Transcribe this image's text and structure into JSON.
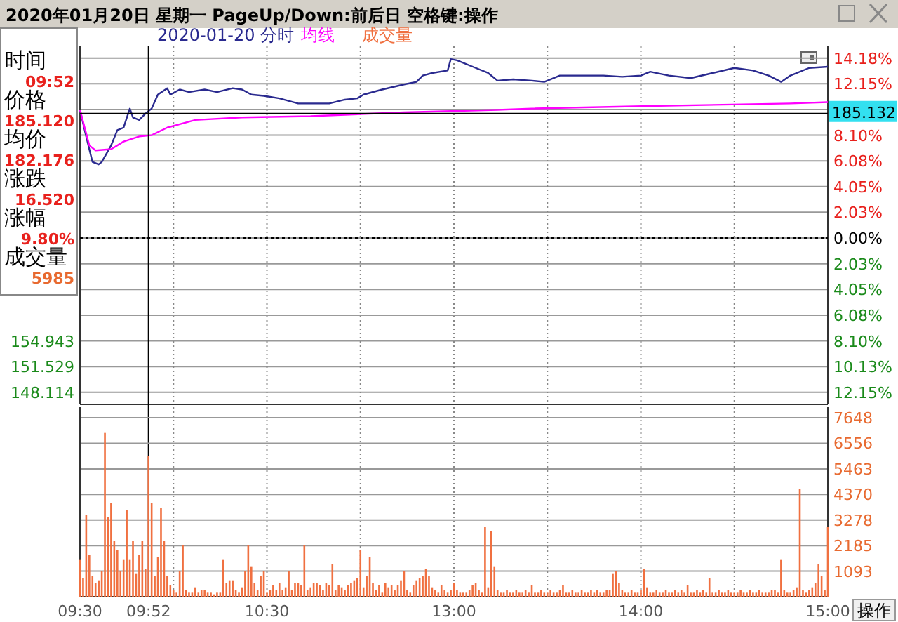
{
  "chart_data": [
    {
      "type": "line",
      "title": "2020年01月20日 星期一 PageUp/Down:前后日 空格键:操作",
      "ylim": [
        -13.1,
        15.1
      ],
      "y2lim": [
        146.51,
        194.06
      ],
      "tick_labels": "y",
      "grid": true,
      "legend": "top",
      "categories": [
        "09:30",
        null,
        null,
        null,
        null,
        null,
        null,
        null,
        null,
        null,
        null,
        null,
        null,
        null,
        null,
        null,
        null,
        null,
        null,
        null,
        null,
        null,
        "09:52",
        null,
        null,
        null,
        null,
        null,
        null,
        null,
        null,
        null,
        null,
        null,
        null,
        null,
        null,
        null,
        null,
        null,
        null,
        null,
        null,
        null,
        null,
        null,
        null,
        null,
        null,
        null,
        null,
        null,
        null,
        null,
        null,
        null,
        null,
        null,
        null,
        null,
        "10:30",
        null,
        null,
        null,
        null,
        null,
        null,
        null,
        null,
        null,
        null,
        null,
        null,
        null,
        null,
        null,
        null,
        null,
        null,
        null,
        null,
        null,
        null,
        null,
        null,
        null,
        null,
        null,
        null,
        null,
        null,
        null,
        null,
        null,
        null,
        null,
        null,
        null,
        null,
        null,
        null,
        null,
        null,
        null,
        null,
        null,
        null,
        null,
        null,
        null,
        null,
        null,
        null,
        null,
        null,
        null,
        null,
        null,
        null,
        null,
        "13:00",
        null,
        null,
        null,
        null,
        null,
        null,
        null,
        null,
        null,
        null,
        null,
        null,
        null,
        null,
        null,
        null,
        null,
        null,
        null,
        null,
        null,
        null,
        null,
        null,
        null,
        null,
        null,
        null,
        null,
        null,
        null,
        null,
        null,
        null,
        null,
        null,
        null,
        null,
        null,
        null,
        null,
        null,
        null,
        null,
        null,
        null,
        null,
        null,
        null,
        null,
        null,
        null,
        null,
        null,
        null,
        null,
        null,
        null,
        null,
        "14:00",
        null,
        null,
        null,
        null,
        null,
        null,
        null,
        null,
        null,
        null,
        null,
        null,
        null,
        null,
        null,
        null,
        null,
        null,
        null,
        null,
        null,
        null,
        null,
        null,
        null,
        null,
        null,
        null,
        null,
        null,
        null,
        null,
        null,
        null,
        null,
        null,
        null,
        null,
        null,
        null,
        null,
        null,
        null,
        null,
        null,
        null,
        null,
        null,
        null,
        null,
        null,
        null,
        null,
        null,
        null,
        null,
        null,
        null,
        null,
        "15:00"
      ],
      "yticks": [
        {
          "value": 14.18,
          "label": "14.18%"
        },
        {
          "value": 12.15,
          "label": "12.15%"
        },
        {
          "value": 10.13,
          "label": null
        },
        {
          "value": 8.1,
          "label": "8.10%"
        },
        {
          "value": 6.08,
          "label": "6.08%"
        },
        {
          "value": 4.05,
          "label": "4.05%"
        },
        {
          "value": 2.03,
          "label": "2.03%"
        },
        {
          "value": 0,
          "label": "0.00%"
        },
        {
          "value": -2.03,
          "label": "2.03%"
        },
        {
          "value": -4.05,
          "label": "4.05%"
        },
        {
          "value": -6.08,
          "label": "6.08%"
        },
        {
          "value": -8.1,
          "label": "8.10%"
        },
        {
          "value": -10.13,
          "label": "10.13%"
        },
        {
          "value": -12.15,
          "label": "12.15%"
        }
      ],
      "y2ticks": [
        154.943,
        151.529,
        148.114
      ],
      "ref_lines": [
        {
          "axis": "x",
          "value": "09:52"
        },
        {
          "axis": "y",
          "value": 0,
          "line_style": "dotted"
        },
        {
          "axis": "y2",
          "value": 185.132,
          "label": "185.132"
        }
      ],
      "annotations": [
        "时间",
        "09:52",
        "价格",
        "185.120",
        "均价",
        "182.176",
        "涨跌",
        "16.520",
        "涨幅",
        "9.80%",
        "成交量",
        "5985"
      ],
      "series": [
        {
          "name": "2020-01-20 分时",
          "color": "#2a2a8f",
          "values": [
            10.1,
            null,
            8.0,
            null,
            6.0,
            null,
            5.8,
            6.0,
            null,
            null,
            7.3,
            null,
            8.5,
            null,
            8.7,
            null,
            10.2,
            9.5,
            null,
            9.3,
            null,
            9.8,
            null,
            10.2,
            null,
            11.3,
            null,
            null,
            11.8,
            11.3,
            null,
            null,
            11.7,
            null,
            null,
            11.5,
            null,
            null,
            null,
            null,
            11.7,
            null,
            null,
            null,
            11.5,
            null,
            null,
            null,
            null,
            11.8,
            null,
            null,
            11.7,
            null,
            null,
            11.3,
            null,
            null,
            null,
            11.2,
            null,
            null,
            null,
            null,
            11.0,
            null,
            null,
            null,
            null,
            null,
            10.6,
            null,
            null,
            null,
            null,
            null,
            10.6,
            null,
            null,
            null,
            10.6,
            null,
            null,
            null,
            null,
            10.9,
            null,
            null,
            null,
            11.0,
            null,
            11.3,
            null,
            null,
            null,
            null,
            null,
            11.7,
            null,
            null,
            null,
            null,
            null,
            null,
            12.1,
            null,
            null,
            null,
            12.3,
            null,
            12.8,
            null,
            null,
            13.0,
            null,
            null,
            null,
            null,
            13.2,
            14.1,
            null,
            14.0,
            null,
            null,
            null,
            null,
            null,
            13.4,
            null,
            null,
            null,
            13.0,
            null,
            null,
            12.4,
            null,
            null,
            null,
            null,
            12.5,
            null,
            null,
            null,
            null,
            null,
            12.4,
            null,
            null,
            null,
            12.3,
            null,
            null,
            null,
            null,
            12.8,
            null,
            null,
            null,
            null,
            null,
            null,
            null,
            12.8,
            null,
            null,
            null,
            null,
            null,
            12.8,
            null,
            null,
            null,
            null,
            null,
            12.7,
            null,
            null,
            null,
            null,
            null,
            12.8,
            null,
            null,
            13.1,
            null,
            null,
            null,
            null,
            null,
            12.8,
            null,
            null,
            null,
            null,
            null,
            null,
            12.6,
            null,
            null,
            null,
            null,
            null,
            null,
            13.0,
            null,
            null,
            null,
            null,
            null,
            null,
            13.4,
            null,
            null,
            null,
            null,
            null,
            13.2,
            null,
            null,
            null,
            null,
            12.8,
            null,
            null,
            null,
            12.3,
            null,
            null,
            12.8,
            null,
            null,
            null,
            null,
            null,
            13.4,
            null,
            null,
            null,
            null,
            null,
            13.5
          ]
        },
        {
          "name": "均线",
          "color": "#ff00ff",
          "values": [
            10.1,
            null,
            null,
            7.3,
            null,
            6.9,
            null,
            null,
            null,
            null,
            7.0,
            null,
            null,
            null,
            7.6,
            null,
            null,
            null,
            null,
            8.0,
            null,
            null,
            null,
            8.1,
            null,
            null,
            null,
            null,
            8.7,
            null,
            null,
            null,
            null,
            null,
            null,
            null,
            null,
            9.3,
            null,
            null,
            null,
            null,
            null,
            null,
            null,
            null,
            null,
            null,
            null,
            null,
            null,
            null,
            9.5,
            null,
            null,
            null,
            null,
            null,
            null,
            null,
            null,
            null,
            null,
            null,
            null,
            null,
            null,
            null,
            null,
            null,
            null,
            null,
            null,
            null,
            9.6,
            null,
            null,
            null,
            null,
            null,
            null,
            null,
            null,
            null,
            null,
            null,
            null,
            null,
            null,
            null,
            null,
            null,
            null,
            null,
            null,
            null,
            null,
            null,
            null,
            null,
            null,
            null,
            null,
            null,
            9.9,
            null,
            null,
            null,
            null,
            null,
            null,
            null,
            null,
            null,
            null,
            null,
            null,
            null,
            null,
            null,
            null,
            null,
            null,
            null,
            null,
            null,
            null,
            null,
            null,
            null,
            null,
            null,
            null,
            null,
            10.1,
            null,
            null,
            null,
            null,
            null,
            null,
            null,
            null,
            null,
            null,
            10.2,
            null,
            null,
            null,
            null,
            null,
            null,
            null,
            null,
            null,
            null,
            null,
            null,
            null,
            null,
            null,
            null,
            null,
            null,
            null,
            null,
            null,
            null,
            null,
            null,
            null,
            null,
            null,
            null,
            null,
            null,
            null,
            null,
            null,
            null,
            null,
            null,
            null,
            10.4,
            null,
            null,
            null,
            null,
            null,
            null,
            null,
            null,
            null,
            null,
            null,
            null,
            null,
            null,
            null,
            null,
            null,
            null,
            null,
            null,
            null,
            null,
            null,
            null,
            null,
            null,
            null,
            null,
            null,
            null,
            null,
            null,
            null,
            null,
            null,
            null,
            null,
            null,
            null,
            null,
            null,
            null,
            null,
            null,
            10.6,
            null,
            null,
            null,
            null,
            null,
            null,
            null,
            null,
            null,
            null,
            null,
            10.7
          ]
        }
      ]
    },
    {
      "type": "bar",
      "ylim": [
        0,
        8100
      ],
      "grid": true,
      "legend": "top",
      "annotations": [
        "操作"
      ],
      "categories": [
        "09:30",
        null,
        null,
        null,
        null,
        null,
        null,
        null,
        null,
        null,
        null,
        null,
        null,
        null,
        null,
        null,
        null,
        null,
        null,
        null,
        null,
        null,
        "09:52",
        null,
        null,
        null,
        null,
        null,
        null,
        null,
        null,
        null,
        null,
        null,
        null,
        null,
        null,
        null,
        null,
        null,
        null,
        null,
        null,
        null,
        null,
        null,
        null,
        null,
        null,
        null,
        null,
        null,
        null,
        null,
        null,
        null,
        null,
        null,
        null,
        null,
        "10:30",
        null,
        null,
        null,
        null,
        null,
        null,
        null,
        null,
        null,
        null,
        null,
        null,
        null,
        null,
        null,
        null,
        null,
        null,
        null,
        null,
        null,
        null,
        null,
        null,
        null,
        null,
        null,
        null,
        null,
        null,
        null,
        null,
        null,
        null,
        null,
        null,
        null,
        null,
        null,
        null,
        null,
        null,
        null,
        null,
        null,
        null,
        null,
        null,
        null,
        null,
        null,
        null,
        null,
        null,
        null,
        null,
        null,
        null,
        null,
        "13:00",
        null,
        null,
        null,
        null,
        null,
        null,
        null,
        null,
        null,
        null,
        null,
        null,
        null,
        null,
        null,
        null,
        null,
        null,
        null,
        null,
        null,
        null,
        null,
        null,
        null,
        null,
        null,
        null,
        null,
        null,
        null,
        null,
        null,
        null,
        null,
        null,
        null,
        null,
        null,
        null,
        null,
        null,
        null,
        null,
        null,
        null,
        null,
        null,
        null,
        null,
        null,
        null,
        null,
        null,
        null,
        null,
        null,
        null,
        null,
        "14:00",
        null,
        null,
        null,
        null,
        null,
        null,
        null,
        null,
        null,
        null,
        null,
        null,
        null,
        null,
        null,
        null,
        null,
        null,
        null,
        null,
        null,
        null,
        null,
        null,
        null,
        null,
        null,
        null,
        null,
        null,
        null,
        null,
        null,
        null,
        null,
        null,
        null,
        null,
        null,
        null,
        null,
        null,
        null,
        null,
        null,
        null,
        null,
        null,
        null,
        null,
        null,
        null,
        null,
        null,
        null,
        null,
        null,
        null,
        null,
        "15:00"
      ],
      "yticks": [
        1093,
        2185,
        3278,
        4370,
        5463,
        6556,
        7648
      ],
      "series": [
        {
          "name": "成交量",
          "color": "#f07040",
          "values": [
            1600,
            800,
            3500,
            1800,
            900,
            600,
            700,
            1100,
            7000,
            3400,
            4000,
            2400,
            2000,
            1100,
            1600,
            3700,
            1600,
            2400,
            1000,
            1800,
            2400,
            1200,
            6000,
            4000,
            900,
            1700,
            3800,
            2400,
            900,
            500,
            300,
            200,
            1100,
            2200,
            300,
            200,
            200,
            400,
            200,
            300,
            300,
            200,
            200,
            100,
            200,
            200,
            1600,
            600,
            700,
            700,
            300,
            200,
            400,
            1100,
            2200,
            1300,
            600,
            300,
            900,
            1100,
            200,
            300,
            500,
            300,
            600,
            300,
            400,
            1100,
            300,
            600,
            600,
            500,
            2200,
            300,
            400,
            600,
            600,
            500,
            300,
            600,
            500,
            1400,
            300,
            500,
            400,
            300,
            500,
            600,
            700,
            800,
            2000,
            400,
            900,
            1700,
            600,
            300,
            500,
            200,
            600,
            400,
            500,
            300,
            500,
            700,
            1100,
            300,
            200,
            500,
            700,
            800,
            900,
            1200,
            900,
            400,
            300,
            200,
            500,
            300,
            200,
            300,
            600,
            300,
            200,
            200,
            200,
            300,
            500,
            600,
            300,
            200,
            3000,
            400,
            2800,
            1300,
            300,
            200,
            200,
            300,
            200,
            200,
            300,
            200,
            200,
            300,
            200,
            500,
            200,
            200,
            300,
            200,
            200,
            300,
            200,
            200,
            300,
            500,
            200,
            200,
            300,
            200,
            200,
            300,
            200,
            200,
            300,
            200,
            300,
            200,
            200,
            300,
            300,
            1000,
            1100,
            600,
            300,
            200,
            200,
            300,
            200,
            200,
            300,
            1200,
            400,
            200,
            200,
            300,
            200,
            200,
            300,
            200,
            200,
            300,
            200,
            300,
            200,
            500,
            200,
            200,
            300,
            200,
            300,
            200,
            800,
            200,
            200,
            300,
            200,
            200,
            300,
            200,
            200,
            200,
            300,
            200,
            200,
            300,
            200,
            200,
            300,
            200,
            200,
            200,
            300,
            300,
            200,
            1600,
            300,
            200,
            200,
            300,
            400,
            4600,
            300,
            200,
            300,
            400,
            600,
            1400,
            900,
            300,
            3000
          ]
        }
      ]
    }
  ]
}
